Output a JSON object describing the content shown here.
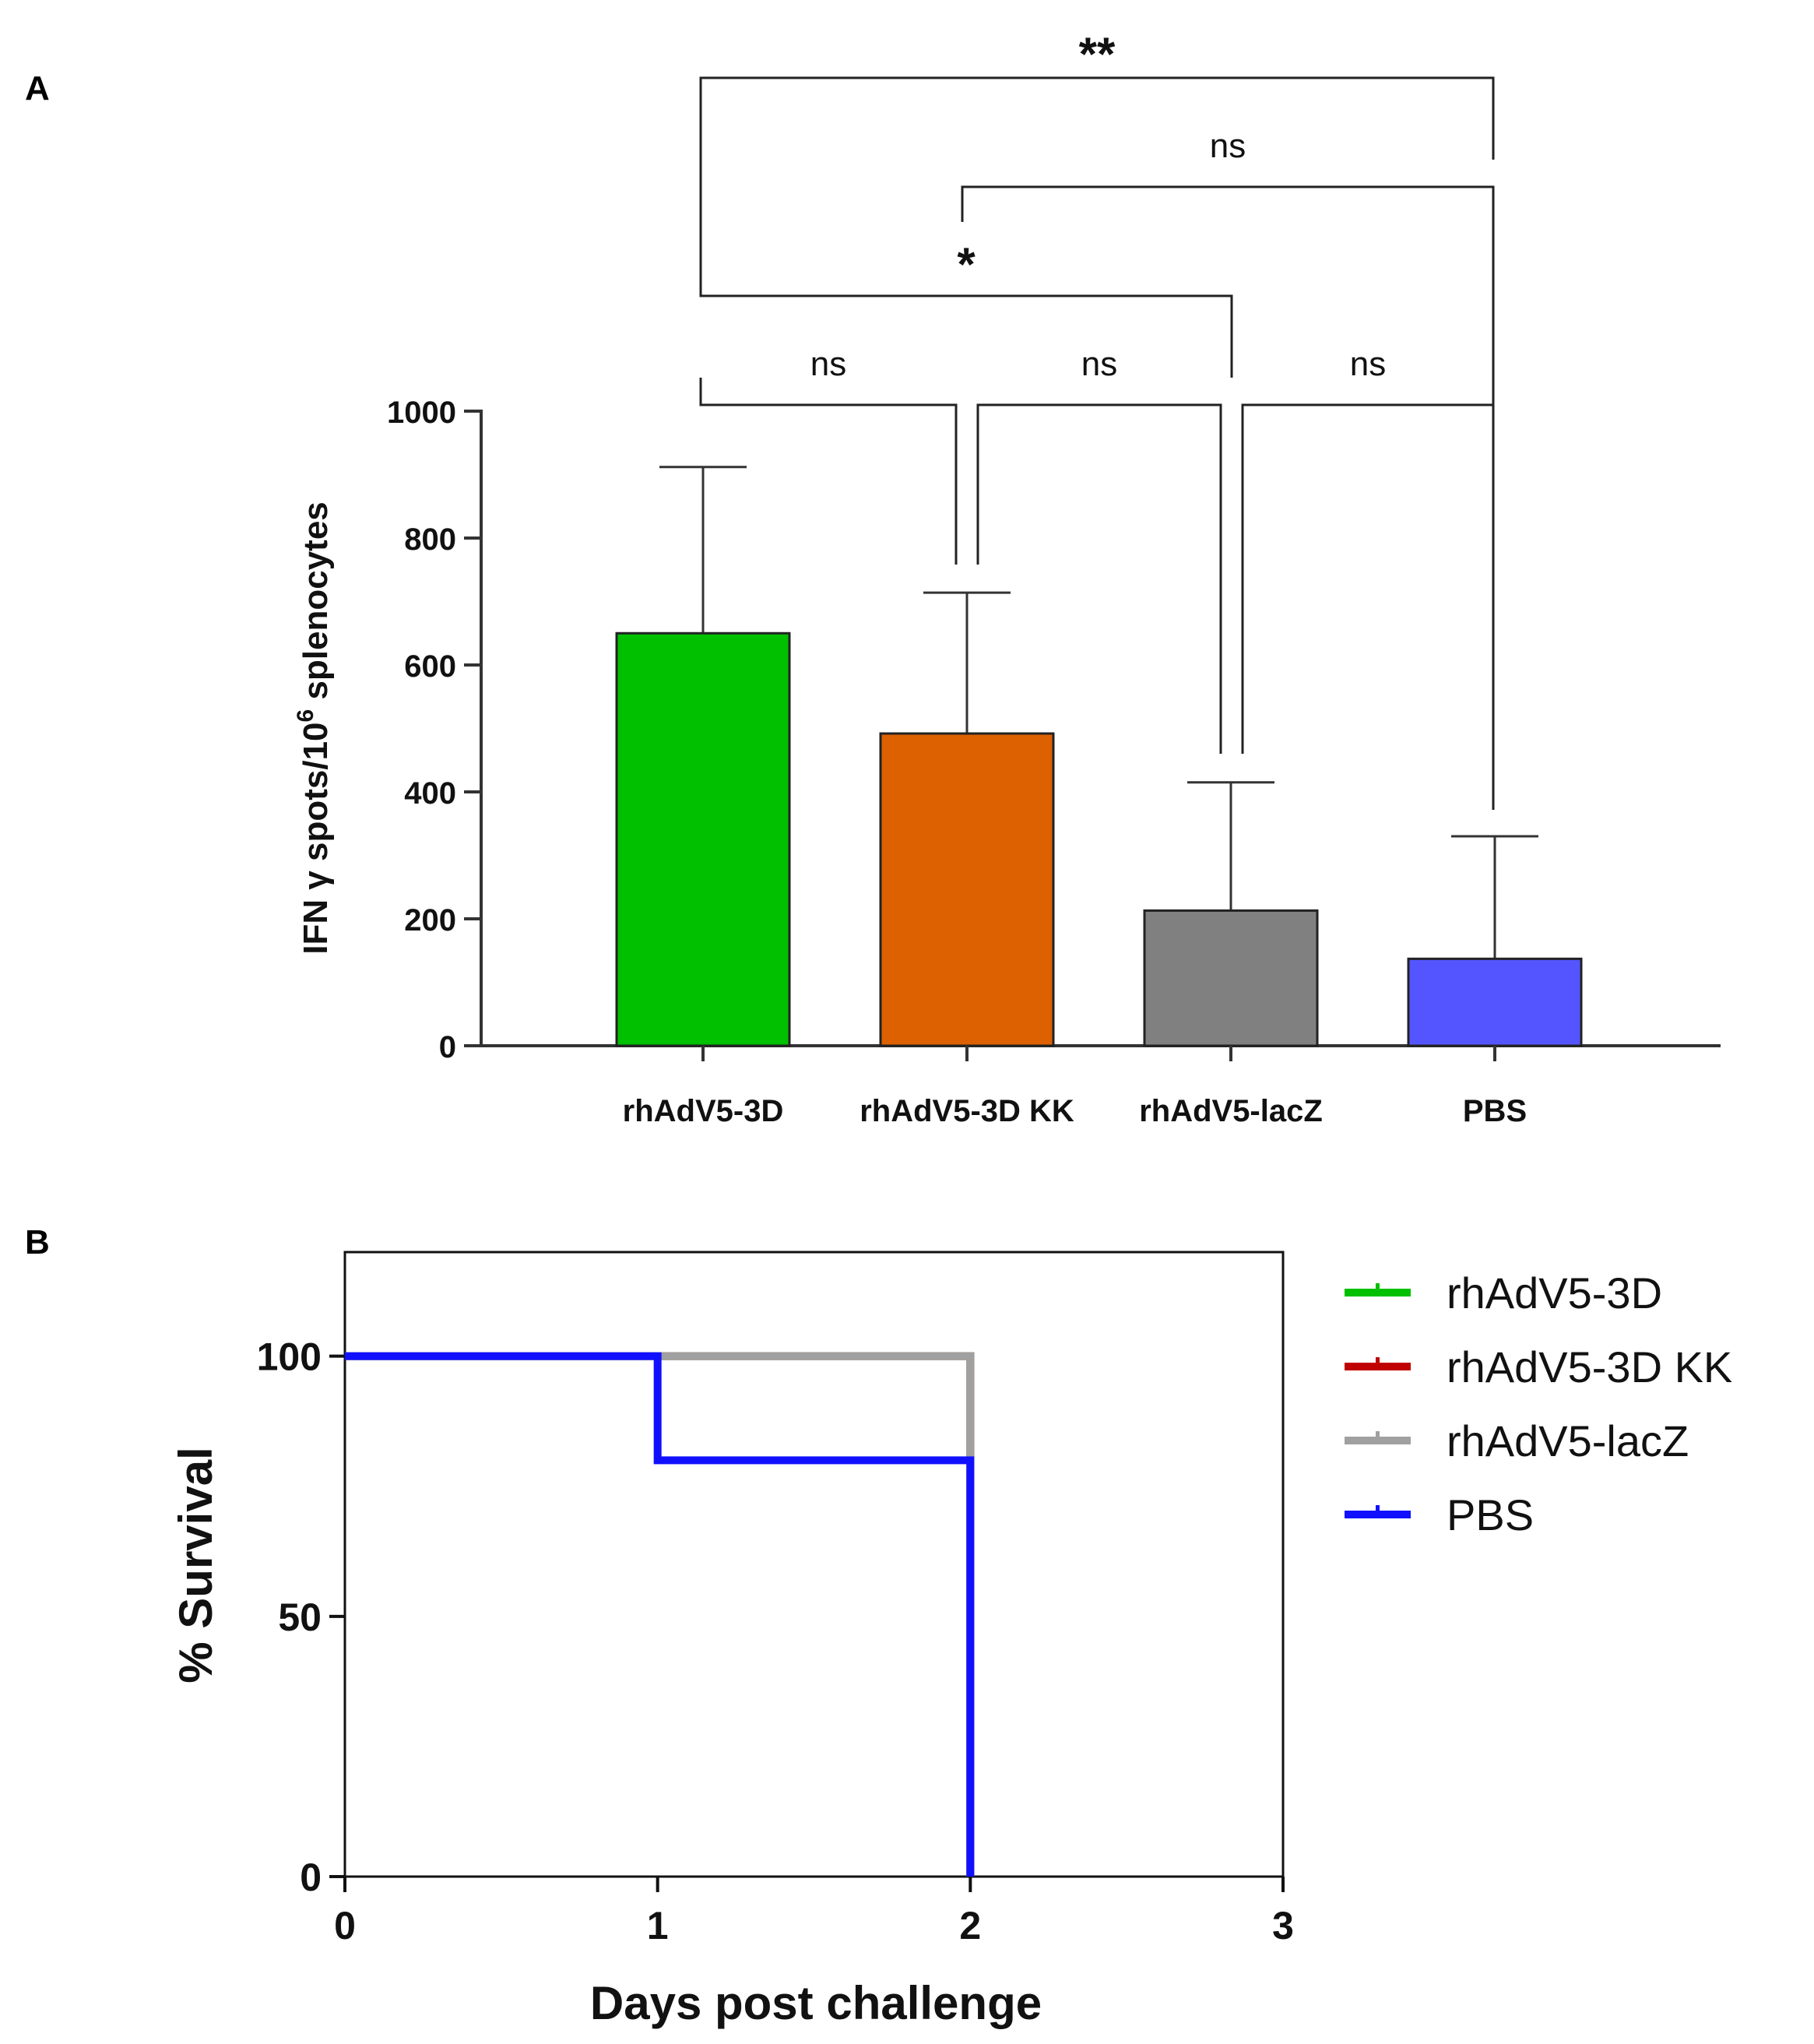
{
  "chart_data": [
    {
      "panel": "A",
      "type": "bar",
      "categories": [
        "rhAdV5-3D",
        "rhAdV5-3D KK",
        "rhAdV5-lacZ",
        "PBS"
      ],
      "values": [
        650,
        492,
        213,
        137
      ],
      "error_upper": [
        912,
        714,
        415,
        330
      ],
      "colors": [
        "#00c000",
        "#dd6100",
        "#808080",
        "#5555ff"
      ],
      "ylabel_main": "IFN γ spots/10",
      "ylabel_sup": "6",
      "ylabel_tail": " splenocytes",
      "ylim": [
        0,
        1000
      ],
      "yticks": [
        "0",
        "200",
        "400",
        "600",
        "800",
        "1000"
      ],
      "significance": [
        {
          "from": 0,
          "to": 3,
          "label": "**"
        },
        {
          "from": 1,
          "to": 3,
          "label": "ns"
        },
        {
          "from": 0,
          "to": 2,
          "label": "*"
        },
        {
          "from": 0,
          "to": 1,
          "label": "ns"
        },
        {
          "from": 1,
          "to": 2,
          "label": "ns"
        },
        {
          "from": 2,
          "to": 3,
          "label": "ns"
        }
      ]
    },
    {
      "panel": "B",
      "type": "line",
      "xlabel": "Days post challenge",
      "ylabel": "% Survival",
      "xlim": [
        0,
        3
      ],
      "ylim": [
        0,
        120
      ],
      "xticks": [
        "0",
        "1",
        "2",
        "3"
      ],
      "yticks": [
        "0",
        "50",
        "100"
      ],
      "series": [
        {
          "name": "rhAdV5-3D",
          "color": "#00c000",
          "x": [
            0,
            2,
            2
          ],
          "y": [
            100,
            100,
            0
          ]
        },
        {
          "name": "rhAdV5-3D KK",
          "color": "#c00000",
          "x": [
            0,
            2,
            2
          ],
          "y": [
            100,
            100,
            0
          ]
        },
        {
          "name": "rhAdV5-lacZ",
          "color": "#a0a0a0",
          "x": [
            0,
            2,
            2
          ],
          "y": [
            100,
            100,
            0
          ]
        },
        {
          "name": "PBS",
          "color": "#1010ff",
          "x": [
            0,
            1,
            1,
            2,
            2
          ],
          "y": [
            100,
            100,
            80,
            80,
            0
          ]
        }
      ],
      "legend_position": "right"
    }
  ],
  "panel_labels": [
    "A",
    "B"
  ]
}
